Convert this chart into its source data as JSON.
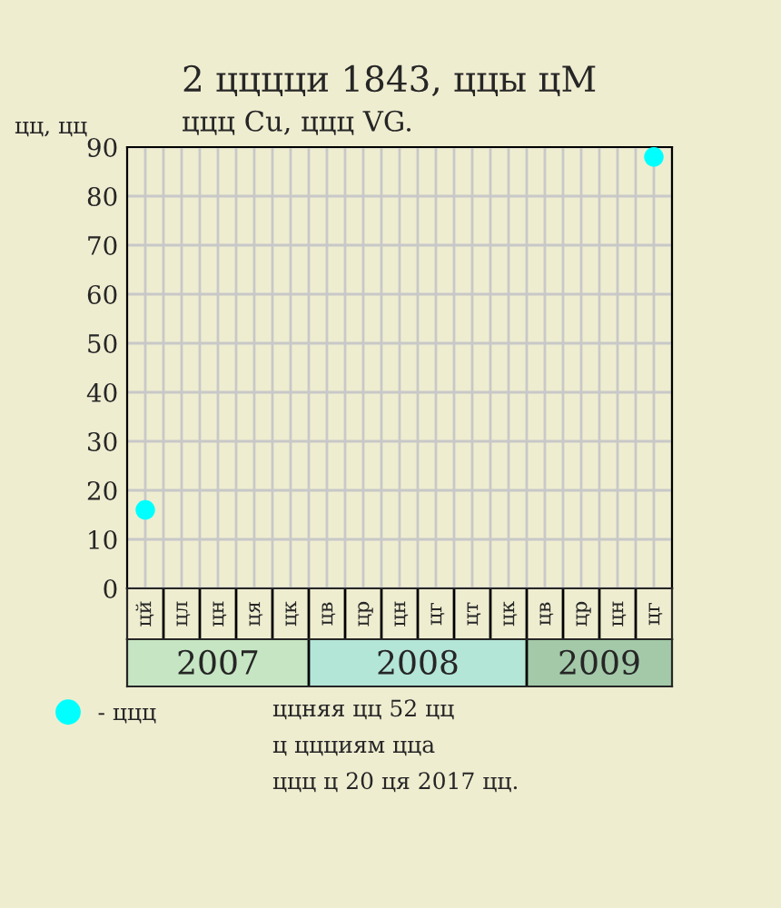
{
  "chart_data": {
    "type": "scatter",
    "title": "2 цццци 1843, ццы цМ",
    "subtitle": "ццц Cu, ццц VG.",
    "ylabel": "цц, цц",
    "categories": [
      "цй",
      "цл",
      "цн",
      "ця",
      "цк",
      "цв",
      "цр",
      "цн",
      "цг",
      "цт",
      "цк",
      "цв",
      "цр",
      "цн",
      "цг"
    ],
    "series": [
      {
        "name": "- ццц",
        "color": "#00ffff",
        "values": [
          16,
          null,
          null,
          null,
          null,
          null,
          null,
          null,
          null,
          null,
          null,
          null,
          null,
          null,
          88
        ]
      }
    ],
    "ylim": [
      0,
      90
    ],
    "yticks": [
      0,
      10,
      20,
      30,
      40,
      50,
      60,
      70,
      80,
      90
    ],
    "annotations": [
      "2007",
      "2008",
      "2009",
      "ццняя цц 52 цц",
      "ц ццциям цца",
      "ццц ц 20 ця 2017 цц."
    ],
    "grid": true,
    "legend": "bottom left",
    "marker": "circle"
  }
}
